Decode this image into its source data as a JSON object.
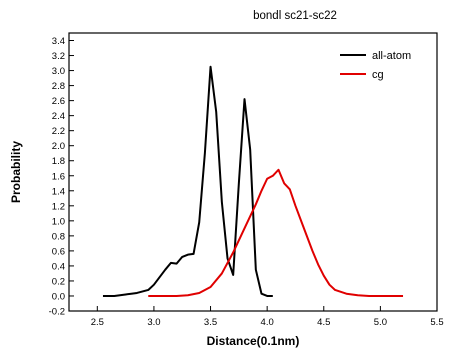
{
  "chart_data": {
    "type": "line",
    "title": "bondl sc21-sc22",
    "xlabel": "Distance(0.1nm)",
    "ylabel": "Probability",
    "xlim": [
      2.25,
      5.5
    ],
    "ylim": [
      -0.2,
      3.5
    ],
    "xticks": [
      "2.5",
      "3.0",
      "3.5",
      "4.0",
      "4.5",
      "5.0",
      "5.5"
    ],
    "yticks": [
      "-0.2",
      "0.0",
      "0.2",
      "0.4",
      "0.6",
      "0.8",
      "1.0",
      "1.2",
      "1.4",
      "1.6",
      "1.8",
      "2.0",
      "2.2",
      "2.4",
      "2.6",
      "2.8",
      "3.0",
      "3.2",
      "3.4"
    ],
    "legend_position": "top-right",
    "grid": false,
    "series": [
      {
        "name": "all-atom",
        "color": "#000000",
        "points": [
          [
            2.55,
            0.0
          ],
          [
            2.65,
            0.0
          ],
          [
            2.7,
            0.01
          ],
          [
            2.75,
            0.02
          ],
          [
            2.8,
            0.03
          ],
          [
            2.85,
            0.04
          ],
          [
            2.9,
            0.06
          ],
          [
            2.95,
            0.08
          ],
          [
            3.0,
            0.15
          ],
          [
            3.05,
            0.25
          ],
          [
            3.1,
            0.35
          ],
          [
            3.15,
            0.44
          ],
          [
            3.2,
            0.43
          ],
          [
            3.25,
            0.52
          ],
          [
            3.3,
            0.55
          ],
          [
            3.35,
            0.56
          ],
          [
            3.4,
            0.98
          ],
          [
            3.45,
            1.9
          ],
          [
            3.5,
            3.05
          ],
          [
            3.55,
            2.45
          ],
          [
            3.6,
            1.25
          ],
          [
            3.65,
            0.5
          ],
          [
            3.7,
            0.28
          ],
          [
            3.75,
            1.5
          ],
          [
            3.8,
            2.62
          ],
          [
            3.85,
            1.95
          ],
          [
            3.9,
            0.35
          ],
          [
            3.95,
            0.03
          ],
          [
            4.0,
            0.0
          ],
          [
            4.05,
            0.0
          ]
        ]
      },
      {
        "name": "cg",
        "color": "#e00000",
        "points": [
          [
            2.95,
            0.0
          ],
          [
            3.1,
            0.0
          ],
          [
            3.2,
            0.0
          ],
          [
            3.3,
            0.01
          ],
          [
            3.4,
            0.04
          ],
          [
            3.5,
            0.12
          ],
          [
            3.6,
            0.3
          ],
          [
            3.7,
            0.58
          ],
          [
            3.8,
            0.9
          ],
          [
            3.9,
            1.22
          ],
          [
            3.95,
            1.4
          ],
          [
            4.0,
            1.56
          ],
          [
            4.05,
            1.6
          ],
          [
            4.1,
            1.68
          ],
          [
            4.15,
            1.5
          ],
          [
            4.2,
            1.42
          ],
          [
            4.25,
            1.2
          ],
          [
            4.3,
            1.0
          ],
          [
            4.35,
            0.8
          ],
          [
            4.4,
            0.6
          ],
          [
            4.45,
            0.42
          ],
          [
            4.5,
            0.27
          ],
          [
            4.55,
            0.15
          ],
          [
            4.6,
            0.08
          ],
          [
            4.7,
            0.03
          ],
          [
            4.8,
            0.01
          ],
          [
            4.9,
            0.0
          ],
          [
            5.0,
            0.0
          ],
          [
            5.2,
            0.0
          ]
        ]
      }
    ]
  }
}
